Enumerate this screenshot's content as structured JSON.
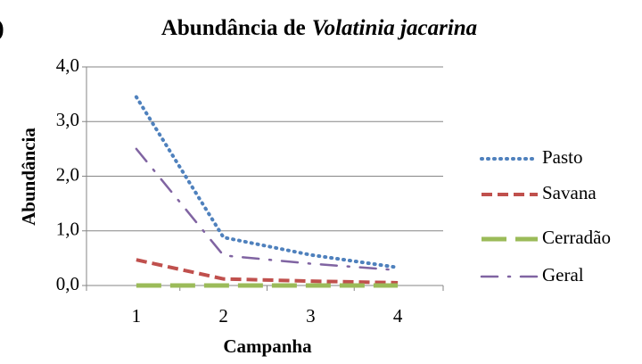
{
  "chart_data": {
    "type": "line",
    "panel_label": ")",
    "title": [
      "Abundância de",
      "Volatinia jacarina"
    ],
    "x_label": "Campanha",
    "y_label": "Abundância",
    "categories": [
      "1",
      "2",
      "3",
      "4"
    ],
    "series": [
      {
        "name": "Pasto",
        "color": "#4f81bd",
        "values": [
          3.45,
          0.88,
          0.56,
          0.33
        ]
      },
      {
        "name": "Savana",
        "color": "#c0504d",
        "values": [
          0.47,
          0.12,
          0.08,
          0.05
        ]
      },
      {
        "name": "Cerradão",
        "color": "#9bbb59",
        "values": [
          0,
          0,
          0,
          0
        ]
      },
      {
        "name": "Geral",
        "color": "#8064a2",
        "values": [
          2.5,
          0.55,
          0.4,
          0.28
        ]
      }
    ],
    "ylim": [
      0,
      4
    ],
    "yticks": [
      {
        "value": 0,
        "label": "0,0"
      },
      {
        "value": 1,
        "label": "1,0"
      },
      {
        "value": 2,
        "label": "2,0"
      },
      {
        "value": 3,
        "label": "3,0"
      },
      {
        "value": 4,
        "label": "4,0"
      }
    ],
    "grid": true,
    "legend": "right"
  }
}
